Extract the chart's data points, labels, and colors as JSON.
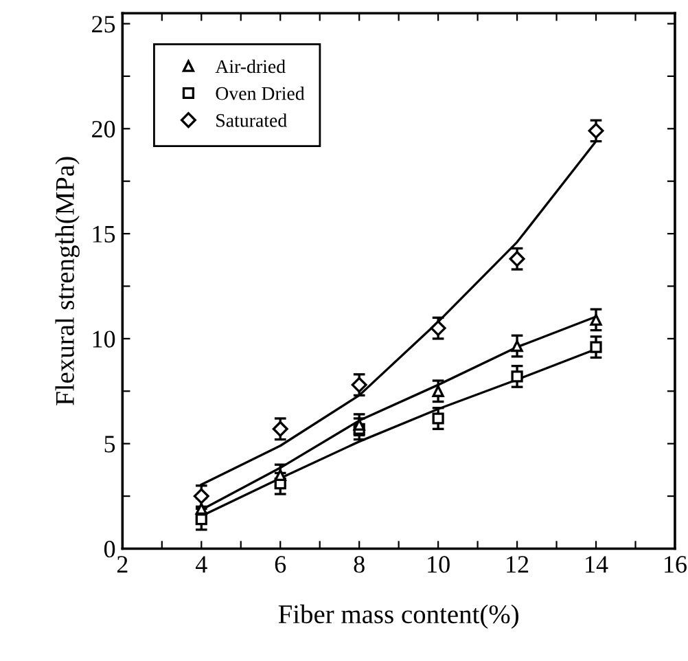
{
  "chart_data": {
    "type": "scatter",
    "xlabel": "Fiber mass content(%)",
    "ylabel": "Flexural strength(MPa)",
    "x": [
      4,
      6,
      8,
      10,
      12,
      14
    ],
    "series": [
      {
        "name": "Air-dried",
        "color": "#000000",
        "marker": "triangle",
        "values": [
          1.9,
          3.5,
          5.9,
          7.5,
          9.65,
          10.9
        ],
        "errors": [
          0.5,
          0.5,
          0.5,
          0.5,
          0.5,
          0.5
        ]
      },
      {
        "name": "Oven Dried",
        "color": "#000000",
        "marker": "square",
        "values": [
          1.4,
          3.1,
          5.7,
          6.2,
          8.2,
          9.6
        ],
        "errors": [
          0.5,
          0.5,
          0.5,
          0.5,
          0.5,
          0.5
        ]
      },
      {
        "name": "Saturated",
        "color": "#000000",
        "marker": "diamond",
        "values": [
          2.5,
          5.7,
          7.8,
          10.5,
          13.8,
          19.9
        ],
        "errors": [
          0.5,
          0.5,
          0.5,
          0.5,
          0.5,
          0.5
        ]
      },
      {
        "type": "line",
        "color": "#000000",
        "marker": "none",
        "values": [
          1.85,
          3.85,
          6.1,
          7.8,
          9.6,
          11.05
        ]
      },
      {
        "type": "line",
        "color": "#000000",
        "marker": "none",
        "values": [
          1.55,
          3.35,
          5.1,
          6.65,
          8.05,
          9.5
        ]
      },
      {
        "type": "line",
        "color": "#000000",
        "marker": "none",
        "values": [
          3.05,
          4.9,
          7.3,
          10.8,
          14.6,
          19.4
        ]
      }
    ],
    "xlim": [
      2,
      16
    ],
    "ylim": [
      0,
      25.5
    ],
    "xticks": [
      2,
      {
        "value": 3,
        "label": null
      },
      4,
      {
        "value": 5,
        "label": null
      },
      6,
      {
        "value": 7,
        "label": null
      },
      8,
      {
        "value": 9,
        "label": null
      },
      10,
      {
        "value": 11,
        "label": null
      },
      12,
      {
        "value": 13,
        "label": null
      },
      14,
      {
        "value": 15,
        "label": null
      },
      16
    ],
    "yticks": [
      0,
      {
        "value": 2.5,
        "label": null
      },
      5,
      {
        "value": 7.5,
        "label": null
      },
      10,
      {
        "value": 12.5,
        "label": null
      },
      15,
      {
        "value": 17.5,
        "label": null
      },
      20,
      {
        "value": 22.5,
        "label": null
      },
      25
    ],
    "grid": false,
    "legend": "top left"
  }
}
